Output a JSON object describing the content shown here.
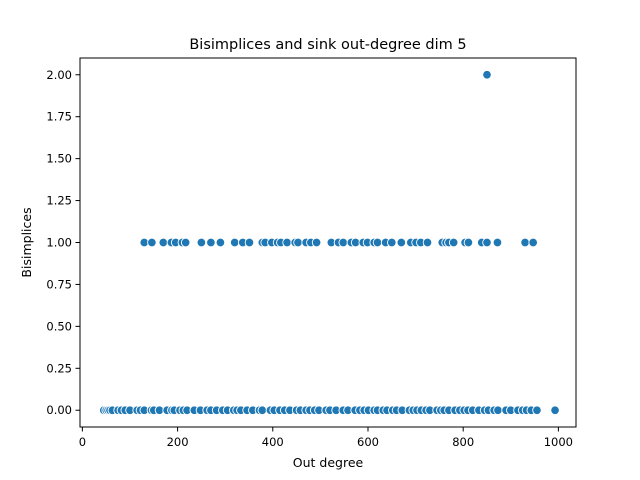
{
  "chart_data": {
    "type": "scatter",
    "title": "Bisimplices and sink out-degree dim 5",
    "xlabel": "Out degree",
    "ylabel": "Bisimplices",
    "xlim": [
      -5,
      1037
    ],
    "ylim": [
      -0.1,
      2.1
    ],
    "x_ticks": [
      0,
      200,
      400,
      600,
      800,
      1000
    ],
    "x_tick_labels": [
      "0",
      "200",
      "400",
      "600",
      "800",
      "1000"
    ],
    "y_ticks": [
      0.0,
      0.25,
      0.5,
      0.75,
      1.0,
      1.25,
      1.5,
      1.75,
      2.0
    ],
    "y_tick_labels": [
      "0.00",
      "0.25",
      "0.50",
      "0.75",
      "1.00",
      "1.25",
      "1.50",
      "1.75",
      "2.00"
    ],
    "grid": false,
    "marker_color": "#1f77b4",
    "points": [
      {
        "x": 850,
        "y": 2
      },
      {
        "x": 130,
        "y": 1
      },
      {
        "x": 146,
        "y": 1
      },
      {
        "x": 170,
        "y": 1
      },
      {
        "x": 187,
        "y": 1
      },
      {
        "x": 196,
        "y": 1
      },
      {
        "x": 210,
        "y": 1
      },
      {
        "x": 217,
        "y": 1
      },
      {
        "x": 250,
        "y": 1
      },
      {
        "x": 270,
        "y": 1
      },
      {
        "x": 290,
        "y": 1
      },
      {
        "x": 320,
        "y": 1
      },
      {
        "x": 337,
        "y": 1
      },
      {
        "x": 351,
        "y": 1
      },
      {
        "x": 378,
        "y": 1
      },
      {
        "x": 384,
        "y": 1
      },
      {
        "x": 398,
        "y": 1
      },
      {
        "x": 410,
        "y": 1
      },
      {
        "x": 417,
        "y": 1
      },
      {
        "x": 430,
        "y": 1
      },
      {
        "x": 447,
        "y": 1
      },
      {
        "x": 453,
        "y": 1
      },
      {
        "x": 470,
        "y": 1
      },
      {
        "x": 480,
        "y": 1
      },
      {
        "x": 492,
        "y": 1
      },
      {
        "x": 523,
        "y": 1
      },
      {
        "x": 538,
        "y": 1
      },
      {
        "x": 548,
        "y": 1
      },
      {
        "x": 565,
        "y": 1
      },
      {
        "x": 574,
        "y": 1
      },
      {
        "x": 590,
        "y": 1
      },
      {
        "x": 599,
        "y": 1
      },
      {
        "x": 613,
        "y": 1
      },
      {
        "x": 620,
        "y": 1
      },
      {
        "x": 637,
        "y": 1
      },
      {
        "x": 650,
        "y": 1
      },
      {
        "x": 670,
        "y": 1
      },
      {
        "x": 690,
        "y": 1
      },
      {
        "x": 701,
        "y": 1
      },
      {
        "x": 711,
        "y": 1
      },
      {
        "x": 725,
        "y": 1
      },
      {
        "x": 756,
        "y": 1
      },
      {
        "x": 764,
        "y": 1
      },
      {
        "x": 770,
        "y": 1
      },
      {
        "x": 780,
        "y": 1
      },
      {
        "x": 804,
        "y": 1
      },
      {
        "x": 811,
        "y": 1
      },
      {
        "x": 839,
        "y": 1
      },
      {
        "x": 850,
        "y": 1
      },
      {
        "x": 872,
        "y": 1
      },
      {
        "x": 930,
        "y": 1
      },
      {
        "x": 947,
        "y": 1
      },
      {
        "x": 45,
        "y": 0
      },
      {
        "x": 50,
        "y": 0
      },
      {
        "x": 54,
        "y": 0
      },
      {
        "x": 58,
        "y": 0
      },
      {
        "x": 63,
        "y": 0
      },
      {
        "x": 75,
        "y": 0
      },
      {
        "x": 82,
        "y": 0
      },
      {
        "x": 90,
        "y": 0
      },
      {
        "x": 100,
        "y": 0
      },
      {
        "x": 115,
        "y": 0
      },
      {
        "x": 122,
        "y": 0
      },
      {
        "x": 130,
        "y": 0
      },
      {
        "x": 145,
        "y": 0
      },
      {
        "x": 150,
        "y": 0
      },
      {
        "x": 162,
        "y": 0
      },
      {
        "x": 178,
        "y": 0
      },
      {
        "x": 188,
        "y": 0
      },
      {
        "x": 193,
        "y": 0
      },
      {
        "x": 205,
        "y": 0
      },
      {
        "x": 212,
        "y": 0
      },
      {
        "x": 220,
        "y": 0
      },
      {
        "x": 235,
        "y": 0
      },
      {
        "x": 248,
        "y": 0
      },
      {
        "x": 262,
        "y": 0
      },
      {
        "x": 270,
        "y": 0
      },
      {
        "x": 282,
        "y": 0
      },
      {
        "x": 295,
        "y": 0
      },
      {
        "x": 305,
        "y": 0
      },
      {
        "x": 318,
        "y": 0
      },
      {
        "x": 325,
        "y": 0
      },
      {
        "x": 333,
        "y": 0
      },
      {
        "x": 346,
        "y": 0
      },
      {
        "x": 358,
        "y": 0
      },
      {
        "x": 372,
        "y": 0
      },
      {
        "x": 378,
        "y": 0
      },
      {
        "x": 395,
        "y": 0
      },
      {
        "x": 403,
        "y": 0
      },
      {
        "x": 415,
        "y": 0
      },
      {
        "x": 425,
        "y": 0
      },
      {
        "x": 436,
        "y": 0
      },
      {
        "x": 450,
        "y": 0
      },
      {
        "x": 458,
        "y": 0
      },
      {
        "x": 470,
        "y": 0
      },
      {
        "x": 478,
        "y": 0
      },
      {
        "x": 488,
        "y": 0
      },
      {
        "x": 497,
        "y": 0
      },
      {
        "x": 512,
        "y": 0
      },
      {
        "x": 520,
        "y": 0
      },
      {
        "x": 533,
        "y": 0
      },
      {
        "x": 548,
        "y": 0
      },
      {
        "x": 558,
        "y": 0
      },
      {
        "x": 573,
        "y": 0
      },
      {
        "x": 583,
        "y": 0
      },
      {
        "x": 592,
        "y": 0
      },
      {
        "x": 601,
        "y": 0
      },
      {
        "x": 613,
        "y": 0
      },
      {
        "x": 620,
        "y": 0
      },
      {
        "x": 632,
        "y": 0
      },
      {
        "x": 640,
        "y": 0
      },
      {
        "x": 652,
        "y": 0
      },
      {
        "x": 660,
        "y": 0
      },
      {
        "x": 672,
        "y": 0
      },
      {
        "x": 687,
        "y": 0
      },
      {
        "x": 695,
        "y": 0
      },
      {
        "x": 703,
        "y": 0
      },
      {
        "x": 712,
        "y": 0
      },
      {
        "x": 722,
        "y": 0
      },
      {
        "x": 730,
        "y": 0
      },
      {
        "x": 745,
        "y": 0
      },
      {
        "x": 753,
        "y": 0
      },
      {
        "x": 760,
        "y": 0
      },
      {
        "x": 770,
        "y": 0
      },
      {
        "x": 783,
        "y": 0
      },
      {
        "x": 793,
        "y": 0
      },
      {
        "x": 802,
        "y": 0
      },
      {
        "x": 810,
        "y": 0
      },
      {
        "x": 820,
        "y": 0
      },
      {
        "x": 833,
        "y": 0
      },
      {
        "x": 845,
        "y": 0
      },
      {
        "x": 853,
        "y": 0
      },
      {
        "x": 865,
        "y": 0
      },
      {
        "x": 873,
        "y": 0
      },
      {
        "x": 890,
        "y": 0
      },
      {
        "x": 900,
        "y": 0
      },
      {
        "x": 915,
        "y": 0
      },
      {
        "x": 925,
        "y": 0
      },
      {
        "x": 933,
        "y": 0
      },
      {
        "x": 943,
        "y": 0
      },
      {
        "x": 955,
        "y": 0
      },
      {
        "x": 993,
        "y": 0
      }
    ]
  }
}
